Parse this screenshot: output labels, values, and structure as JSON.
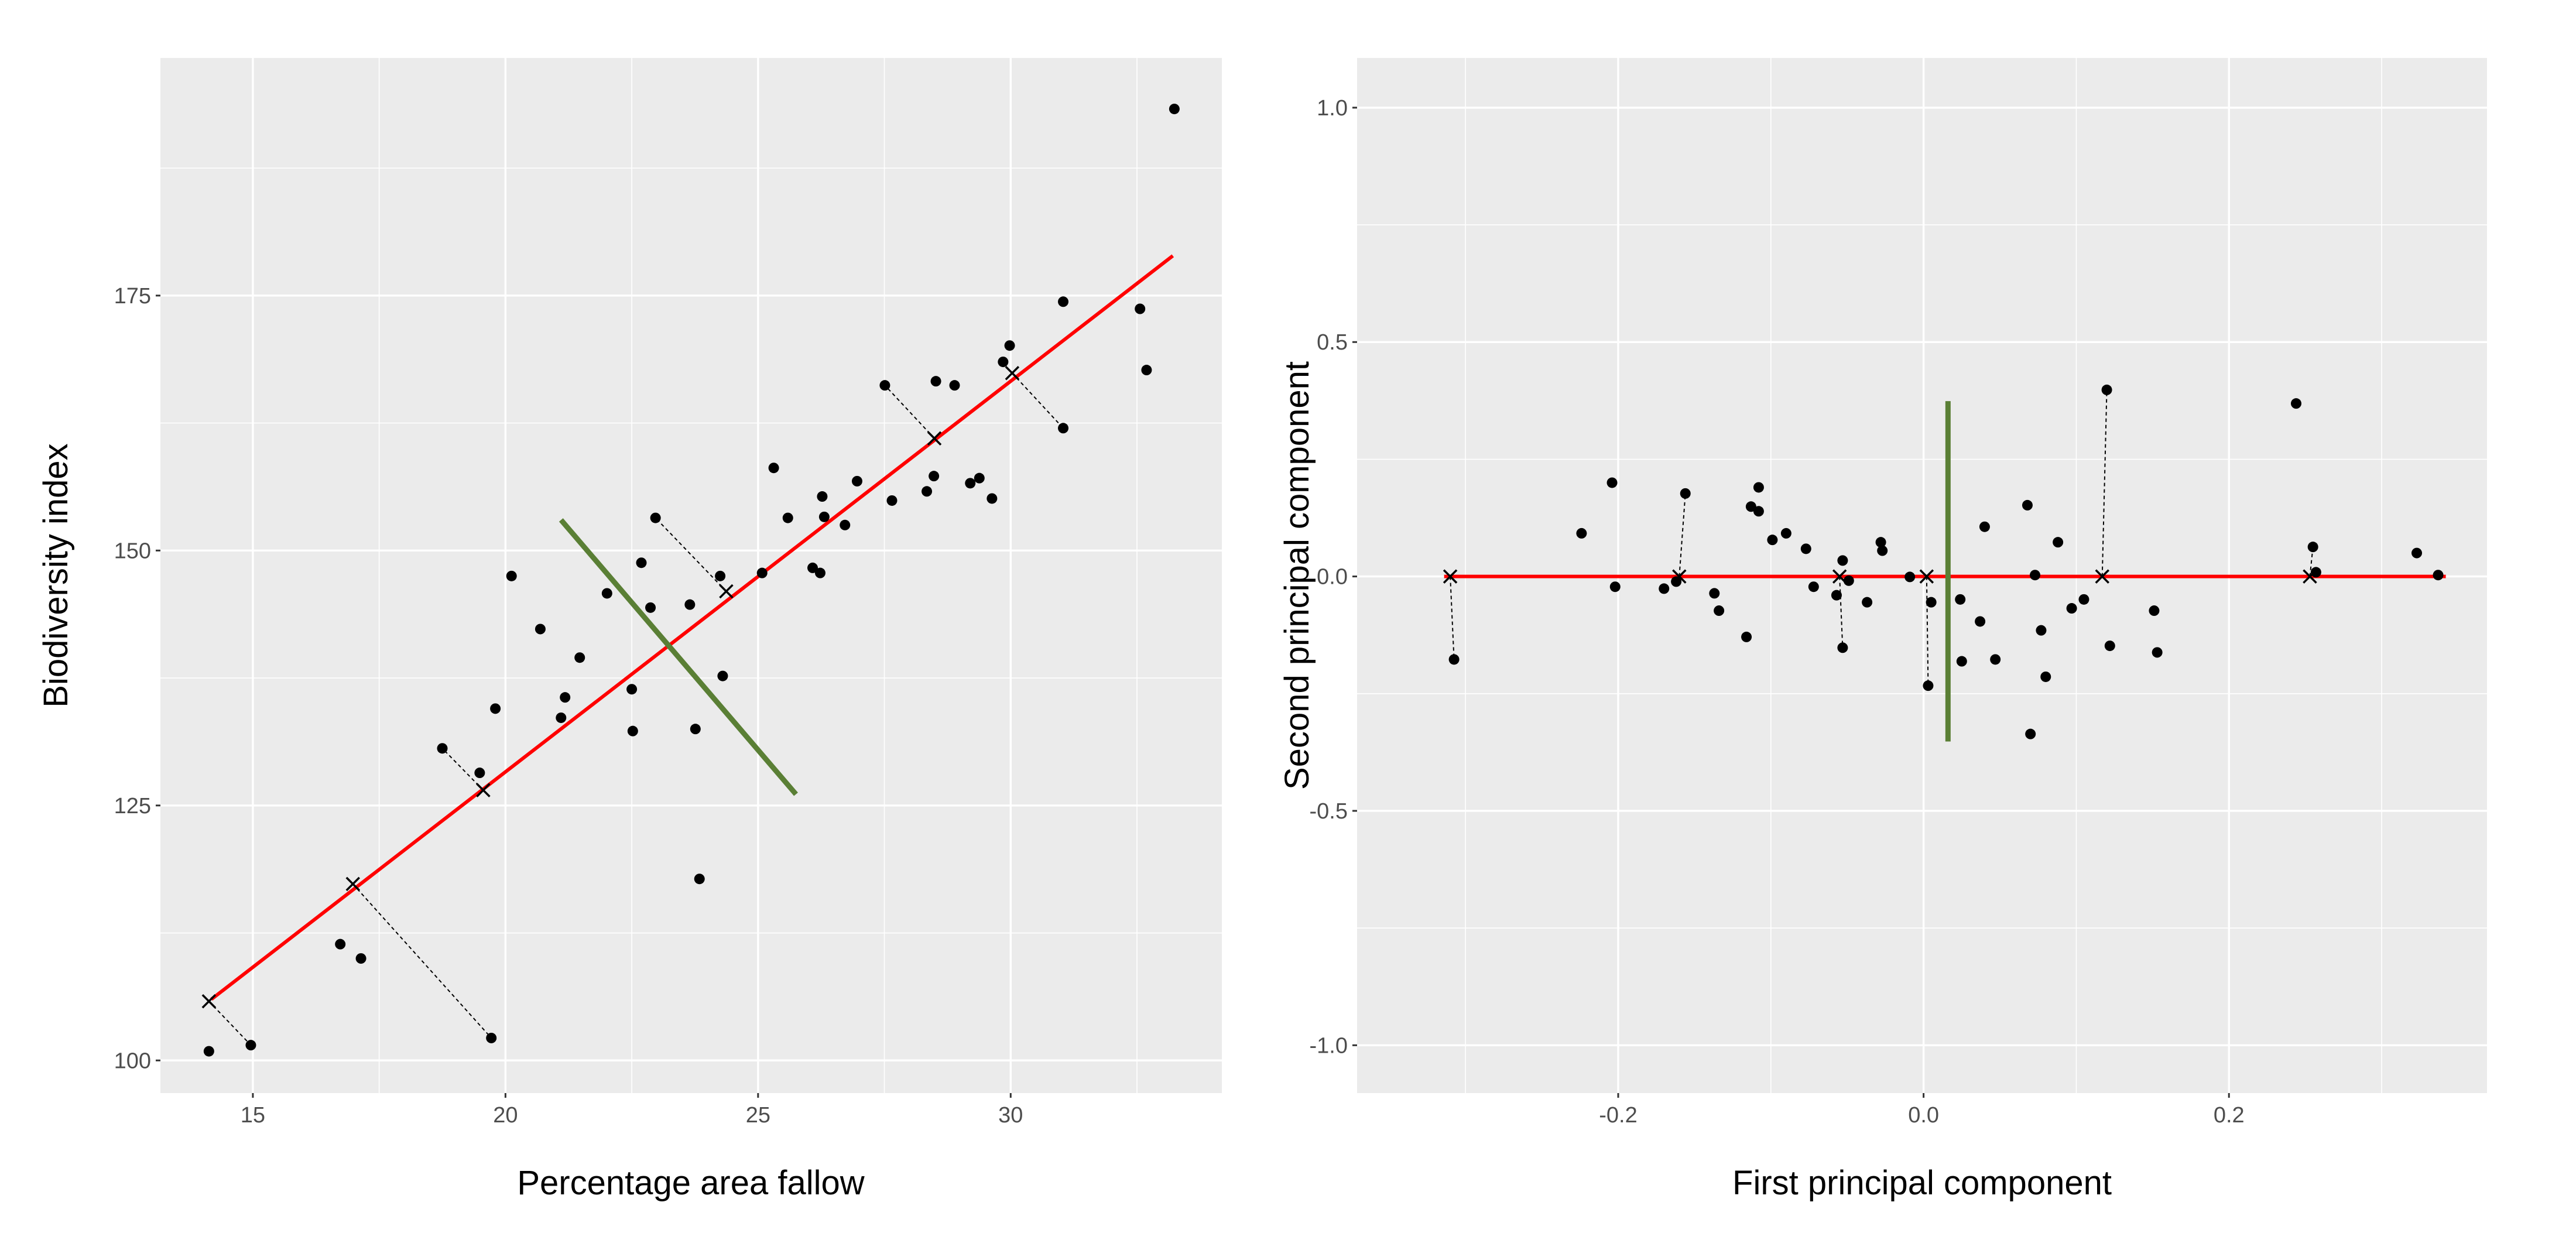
{
  "chart_data": [
    {
      "type": "scatter",
      "title": "",
      "xlabel": "Percentage area fallow",
      "ylabel": "Biodiversity index",
      "xlim": [
        13.17,
        34.18
      ],
      "ylim": [
        96.8,
        198.3
      ],
      "x_ticks": [
        15,
        20,
        25,
        30
      ],
      "x_tick_labels": [
        "15",
        "20",
        "25",
        "30"
      ],
      "x_minor": [
        17.5,
        22.5,
        27.5,
        32.5
      ],
      "y_ticks": [
        100,
        125,
        150,
        175
      ],
      "y_tick_labels": [
        "100",
        "125",
        "150",
        "175"
      ],
      "y_minor": [
        112.5,
        137.5,
        162.5,
        187.5
      ],
      "grid": true,
      "colors": {
        "panel": "#ebebeb",
        "grid": "#ffffff",
        "points": "#000000",
        "fit_line": "#ff0000",
        "perpendicular_line": "#5a7f35"
      },
      "points": [
        [
          14.13,
          100.9
        ],
        [
          14.96,
          101.5
        ],
        [
          16.73,
          111.4
        ],
        [
          17.14,
          110.0
        ],
        [
          19.72,
          102.2
        ],
        [
          18.75,
          130.6
        ],
        [
          19.49,
          128.2
        ],
        [
          19.8,
          134.5
        ],
        [
          20.12,
          147.5
        ],
        [
          20.69,
          142.3
        ],
        [
          21.1,
          133.6
        ],
        [
          21.18,
          135.6
        ],
        [
          21.47,
          139.5
        ],
        [
          22.01,
          145.8
        ],
        [
          22.5,
          136.4
        ],
        [
          22.52,
          132.3
        ],
        [
          22.69,
          148.8
        ],
        [
          22.87,
          144.4
        ],
        [
          22.97,
          153.2
        ],
        [
          23.65,
          144.7
        ],
        [
          23.76,
          132.5
        ],
        [
          23.84,
          117.8
        ],
        [
          24.25,
          147.5
        ],
        [
          24.3,
          137.7
        ],
        [
          25.08,
          147.8
        ],
        [
          25.31,
          158.1
        ],
        [
          25.59,
          153.2
        ],
        [
          26.08,
          148.3
        ],
        [
          26.23,
          147.8
        ],
        [
          26.27,
          155.3
        ],
        [
          26.31,
          153.3
        ],
        [
          26.72,
          152.5
        ],
        [
          26.96,
          156.8
        ],
        [
          27.51,
          166.2
        ],
        [
          27.65,
          154.9
        ],
        [
          28.34,
          155.8
        ],
        [
          28.48,
          157.3
        ],
        [
          28.52,
          166.6
        ],
        [
          28.89,
          166.2
        ],
        [
          29.2,
          156.6
        ],
        [
          29.38,
          157.1
        ],
        [
          29.63,
          155.1
        ],
        [
          29.85,
          168.5
        ],
        [
          29.98,
          170.1
        ],
        [
          31.04,
          174.4
        ],
        [
          31.04,
          162.0
        ],
        [
          32.56,
          173.7
        ],
        [
          32.69,
          167.7
        ],
        [
          33.24,
          193.3
        ]
      ],
      "projections": [
        {
          "x_mark": [
            14.13,
            105.8
          ],
          "point": [
            14.96,
            101.5
          ]
        },
        {
          "x_mark": [
            16.98,
            117.3
          ],
          "point": [
            19.72,
            102.2
          ]
        },
        {
          "x_mark": [
            19.56,
            126.5
          ],
          "point": [
            18.75,
            130.6
          ]
        },
        {
          "x_mark": [
            24.37,
            146.0
          ],
          "point": [
            22.97,
            153.2
          ]
        },
        {
          "x_mark": [
            28.49,
            161.0
          ],
          "point": [
            27.51,
            166.2
          ]
        },
        {
          "x_mark": [
            30.03,
            167.4
          ],
          "point": [
            31.04,
            162.0
          ]
        }
      ],
      "fit_line": [
        [
          14.18,
          106.0
        ],
        [
          33.21,
          178.9
        ]
      ],
      "perpendicular_line": [
        [
          21.1,
          153.0
        ],
        [
          25.75,
          126.1
        ]
      ]
    },
    {
      "type": "scatter",
      "title": "",
      "xlabel": "First principal component",
      "ylabel": "Second principal component",
      "xlim": [
        -0.371,
        0.369
      ],
      "ylim": [
        -1.102,
        1.106
      ],
      "x_ticks": [
        -0.2,
        0.0,
        0.2
      ],
      "x_tick_labels": [
        "-0.2",
        "0.0",
        "0.2"
      ],
      "x_minor": [
        -0.3,
        -0.1,
        0.1,
        0.3
      ],
      "y_ticks": [
        -1.0,
        -0.5,
        0.0,
        0.5,
        1.0
      ],
      "y_tick_labels": [
        "-1.0",
        "-0.5",
        "0.0",
        "0.5",
        "1.0"
      ],
      "y_minor": [
        -0.75,
        -0.25,
        0.25,
        0.75
      ],
      "grid": true,
      "colors": {
        "panel": "#ebebeb",
        "grid": "#ffffff",
        "points": "#000000",
        "fit_line": "#ff0000",
        "perpendicular_line": "#5a7f35"
      },
      "points": [
        [
          -0.3075,
          -0.177
        ],
        [
          -0.224,
          0.092
        ],
        [
          -0.204,
          0.2
        ],
        [
          -0.202,
          -0.022
        ],
        [
          -0.17,
          -0.026
        ],
        [
          -0.162,
          -0.011
        ],
        [
          -0.156,
          0.177
        ],
        [
          -0.137,
          -0.036
        ],
        [
          -0.134,
          -0.073
        ],
        [
          -0.116,
          -0.129
        ],
        [
          -0.113,
          0.149
        ],
        [
          -0.108,
          0.19
        ],
        [
          -0.108,
          0.139
        ],
        [
          -0.099,
          0.078
        ],
        [
          -0.09,
          0.092
        ],
        [
          -0.077,
          0.059
        ],
        [
          -0.072,
          -0.022
        ],
        [
          -0.057,
          -0.04
        ],
        [
          -0.053,
          0.034
        ],
        [
          -0.053,
          -0.152
        ],
        [
          -0.049,
          -0.009
        ],
        [
          -0.037,
          -0.055
        ],
        [
          -0.028,
          0.073
        ],
        [
          -0.027,
          0.055
        ],
        [
          -0.009,
          -0.001
        ],
        [
          0.003,
          -0.233
        ],
        [
          0.005,
          -0.055
        ],
        [
          0.024,
          -0.049
        ],
        [
          0.025,
          -0.181
        ],
        [
          0.037,
          -0.096
        ],
        [
          0.04,
          0.106
        ],
        [
          0.047,
          -0.177
        ],
        [
          0.068,
          0.152
        ],
        [
          0.07,
          -0.336
        ],
        [
          0.073,
          0.003
        ],
        [
          0.077,
          -0.115
        ],
        [
          0.08,
          -0.214
        ],
        [
          0.088,
          0.073
        ],
        [
          0.097,
          -0.068
        ],
        [
          0.105,
          -0.049
        ],
        [
          0.12,
          0.398
        ],
        [
          0.122,
          -0.148
        ],
        [
          0.151,
          -0.073
        ],
        [
          0.153,
          -0.162
        ],
        [
          0.244,
          0.369
        ],
        [
          0.255,
          0.063
        ],
        [
          0.257,
          0.009
        ],
        [
          0.323,
          0.05
        ],
        [
          0.337,
          0.003
        ]
      ],
      "projections": [
        {
          "x_mark": [
            -0.31,
            0.0
          ],
          "point": [
            -0.3075,
            -0.177
          ]
        },
        {
          "x_mark": [
            -0.16,
            0.0
          ],
          "point": [
            -0.156,
            0.177
          ]
        },
        {
          "x_mark": [
            -0.055,
            0.0
          ],
          "point": [
            -0.053,
            -0.152
          ]
        },
        {
          "x_mark": [
            0.002,
            0.0
          ],
          "point": [
            0.003,
            -0.233
          ]
        },
        {
          "x_mark": [
            0.117,
            0.0
          ],
          "point": [
            0.12,
            0.398
          ]
        },
        {
          "x_mark": [
            0.253,
            0.0
          ],
          "point": [
            0.255,
            0.063
          ]
        }
      ],
      "fit_line": [
        [
          -0.314,
          0.0
        ],
        [
          0.342,
          0.0
        ]
      ],
      "perpendicular_line": [
        [
          0.016,
          0.374
        ],
        [
          0.016,
          -0.352
        ]
      ]
    }
  ]
}
